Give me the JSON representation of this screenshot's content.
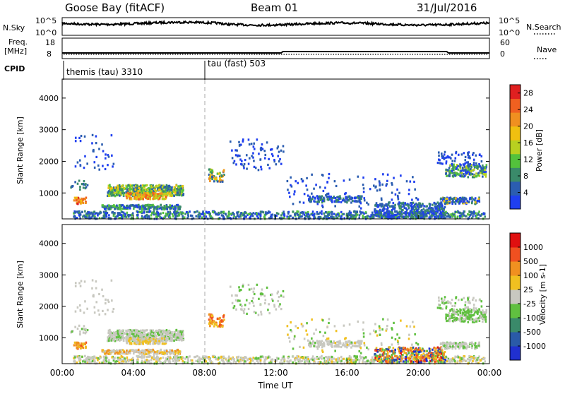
{
  "header": {
    "station": "Goose Bay (fitACF)",
    "beam": "Beam 01",
    "date": "31/Jul/2016"
  },
  "noise_panel": {
    "left_label": "N.Sky",
    "left_ticks": [
      "10^5",
      "10^0"
    ],
    "right_ticks": [
      "10^5",
      "10^0"
    ],
    "right_label": "N.Search",
    "right_label_style": "dotted"
  },
  "freq_panel": {
    "left_label_line1": "Freq.",
    "left_label_line2": "[MHz]",
    "left_ticks": [
      "18",
      "8"
    ],
    "right_ticks": [
      "60",
      "0"
    ],
    "right_label": "Nave",
    "right_label_style": "dotted"
  },
  "cpid": {
    "label": "CPID",
    "segments": [
      {
        "name": "themis (tau) 3310",
        "start_hour": 0,
        "end_hour": 8
      },
      {
        "name": "tau (fast) 503",
        "start_hour": 8,
        "end_hour": 24
      }
    ]
  },
  "chart_data": [
    {
      "type": "heatmap",
      "title": "",
      "xlabel": "",
      "ylabel": "Slant Range [km]",
      "xlim": [
        0,
        24
      ],
      "ylim": [
        180,
        4600
      ],
      "y_ticks": [
        1000,
        2000,
        3000,
        4000
      ],
      "colorbar": {
        "label": "Power [dB]",
        "ticks": [
          4,
          8,
          12,
          16,
          20,
          24,
          28
        ],
        "range": [
          0,
          30
        ],
        "colors": [
          "#1f3ff0",
          "#2b5db0",
          "#3a8a6a",
          "#53c23c",
          "#b8d020",
          "#f0c010",
          "#f09020",
          "#f06020",
          "#e02020"
        ]
      }
    },
    {
      "type": "heatmap",
      "title": "",
      "xlabel": "Time UT",
      "ylabel": "Slant Range [km]",
      "xlim": [
        0,
        24
      ],
      "ylim": [
        180,
        4600
      ],
      "y_ticks": [
        1000,
        2000,
        3000,
        4000
      ],
      "x_ticks": [
        "00:00",
        "04:00",
        "08:00",
        "12:00",
        "16:00",
        "20:00",
        "00:00"
      ],
      "colorbar": {
        "label": "Velocity [m s-1]",
        "ticks": [
          1000,
          500,
          100,
          25,
          -25,
          -100,
          -500,
          -1000
        ],
        "colors": [
          "#2030d0",
          "#2a5aa8",
          "#3a8a6a",
          "#60c040",
          "#c8c8c0",
          "#f0c020",
          "#f09020",
          "#f05020",
          "#e01010"
        ]
      }
    }
  ]
}
